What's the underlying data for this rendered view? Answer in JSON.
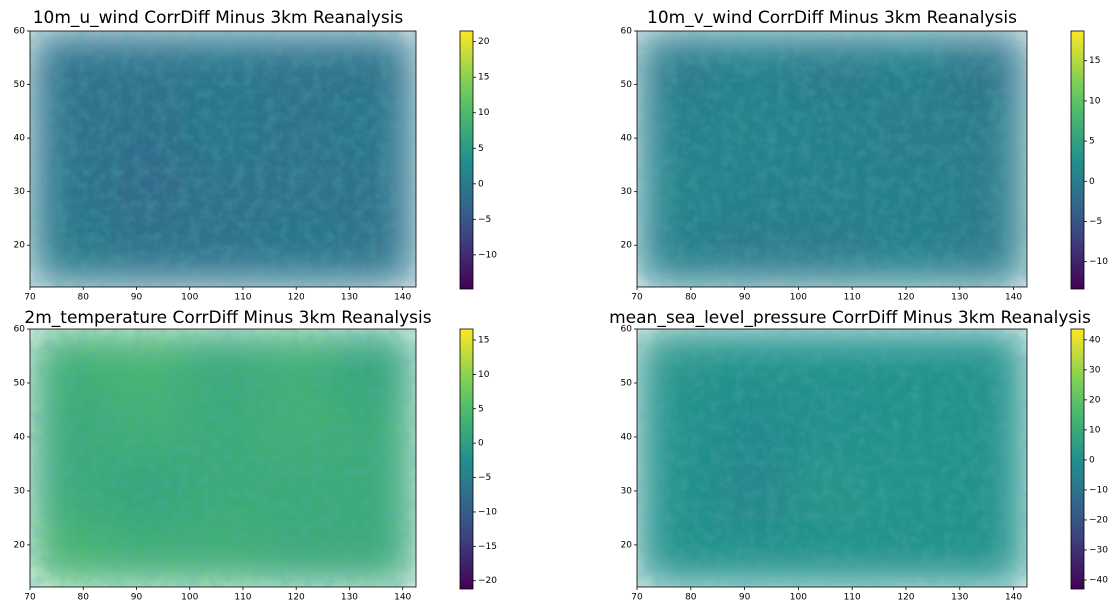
{
  "chart_data": [
    {
      "type": "heatmap",
      "title": "10m_u_wind CorrDiff Minus 3km Reanalysis",
      "colormap": "viridis",
      "xlim": [
        70,
        142.5
      ],
      "ylim": [
        12.2,
        60
      ],
      "xticks": [
        70,
        80,
        90,
        100,
        110,
        120,
        130,
        140
      ],
      "yticks": [
        20,
        30,
        40,
        50,
        60
      ],
      "z": [
        [
          -1,
          -1,
          -0.5,
          -1,
          -1
        ],
        [
          -1,
          -1.5,
          -0.5,
          -1,
          -0.5
        ],
        [
          -0.5,
          -2,
          -1,
          -1,
          -1
        ],
        [
          0,
          -1,
          -1,
          -0.5,
          -1
        ]
      ],
      "clim": [
        -14.8,
        21.5
      ],
      "cticks": [
        {
          "value": -10,
          "label": "−10"
        },
        {
          "value": -5,
          "label": "−5"
        },
        0,
        5,
        10,
        15,
        20
      ]
    },
    {
      "type": "heatmap",
      "title": "10m_v_wind CorrDiff Minus 3km Reanalysis",
      "colormap": "viridis",
      "xlim": [
        70,
        142.5
      ],
      "ylim": [
        12.2,
        60
      ],
      "xticks": [
        70,
        80,
        90,
        100,
        110,
        120,
        130,
        140
      ],
      "yticks": [
        20,
        30,
        40,
        50,
        60
      ],
      "z": [
        [
          0,
          0.5,
          0,
          0.5,
          -1
        ],
        [
          0.5,
          1,
          0.5,
          0,
          0
        ],
        [
          1,
          0.5,
          0.5,
          0.5,
          0
        ],
        [
          0.5,
          0,
          0,
          0.5,
          0
        ]
      ],
      "clim": [
        -13.4,
        18.7
      ],
      "cticks": [
        {
          "value": -10,
          "label": "−10"
        },
        {
          "value": -5,
          "label": "−5"
        },
        0,
        5,
        10,
        15
      ]
    },
    {
      "type": "heatmap",
      "title": "2m_temperature CorrDiff Minus 3km Reanalysis",
      "colormap": "viridis",
      "xlim": [
        70,
        142.5
      ],
      "ylim": [
        12.2,
        60
      ],
      "xticks": [
        70,
        80,
        90,
        100,
        110,
        120,
        130,
        140
      ],
      "yticks": [
        20,
        30,
        40,
        50,
        60
      ],
      "z": [
        [
          3,
          4,
          2,
          3,
          1
        ],
        [
          2,
          3,
          2,
          3,
          2
        ],
        [
          2,
          1,
          2,
          2,
          2
        ],
        [
          4,
          3,
          3,
          2,
          2
        ]
      ],
      "clim": [
        -21.2,
        16.6
      ],
      "cticks": [
        {
          "value": -20,
          "label": "−20"
        },
        {
          "value": -15,
          "label": "−15"
        },
        {
          "value": -10,
          "label": "−10"
        },
        {
          "value": -5,
          "label": "−5"
        },
        0,
        5,
        10,
        15
      ]
    },
    {
      "type": "heatmap",
      "title": "mean_sea_level_pressure CorrDiff Minus 3km Reanalysis",
      "colormap": "viridis",
      "xlim": [
        70,
        142.5
      ],
      "ylim": [
        12.2,
        60
      ],
      "xticks": [
        70,
        80,
        90,
        100,
        110,
        120,
        130,
        140
      ],
      "yticks": [
        20,
        30,
        40,
        50,
        60
      ],
      "z": [
        [
          2,
          1,
          1,
          1,
          1
        ],
        [
          1,
          -2,
          0,
          1,
          1
        ],
        [
          1,
          -3,
          2,
          1,
          1
        ],
        [
          1,
          1,
          1,
          1,
          1
        ]
      ],
      "clim": [
        -43,
        43.6
      ],
      "cticks": [
        {
          "value": -40,
          "label": "−40"
        },
        {
          "value": -30,
          "label": "−30"
        },
        {
          "value": -20,
          "label": "−20"
        },
        {
          "value": -10,
          "label": "−10"
        },
        0,
        10,
        20,
        30,
        40
      ]
    }
  ]
}
